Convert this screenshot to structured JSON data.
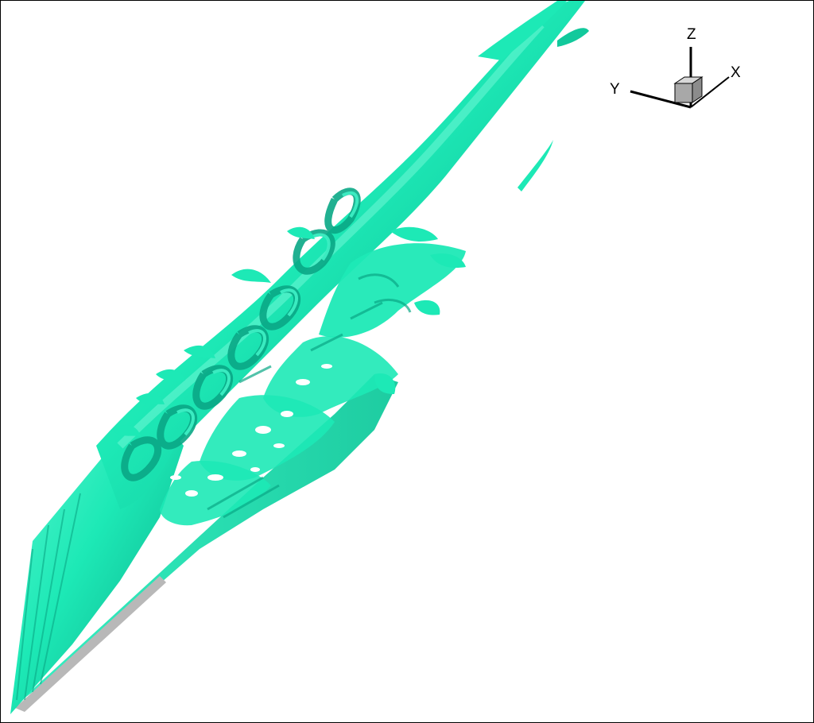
{
  "colors": {
    "surface": "#1de9b6",
    "surface_light": "#5cf5d0",
    "surface_dark": "#0aa886",
    "surface_deep": "#067a62",
    "body_gray": "#b8b8b8",
    "background": "#ffffff",
    "frame": "#000000"
  },
  "icons": {
    "orientation_cube": "cube-icon"
  },
  "axes": {
    "x_label": "X",
    "y_label": "Y",
    "z_label": "Z"
  }
}
